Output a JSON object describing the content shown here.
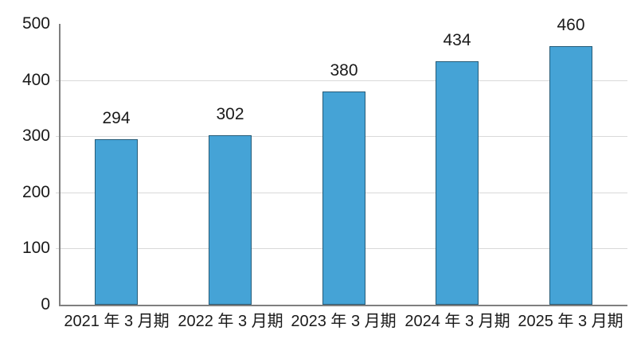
{
  "chart_data": {
    "type": "bar",
    "title": "",
    "categories": [
      "2021 年 3 月期",
      "2022 年 3 月期",
      "2023 年 3 月期",
      "2024 年 3 月期",
      "2025 年 3 月期"
    ],
    "values": [
      294,
      302,
      380,
      434,
      460
    ],
    "data_labels": [
      "294",
      "302",
      "380",
      "434",
      "460"
    ],
    "xlabel": "",
    "ylabel": "",
    "ylim": [
      0,
      500
    ],
    "yticks": [
      0,
      100,
      200,
      300,
      400,
      500
    ],
    "ytick_labels": [
      "0",
      "100",
      "200",
      "300",
      "400",
      "500"
    ],
    "grid": "horizontal-major",
    "legend_position": "none",
    "colors": {
      "bar_fill": "#45A3D6",
      "bar_border": "#265B77",
      "axis": "#7F7F7F",
      "gridline": "#D9D9D9",
      "text": "#1A1A1A",
      "background": "#FFFFFF"
    }
  }
}
